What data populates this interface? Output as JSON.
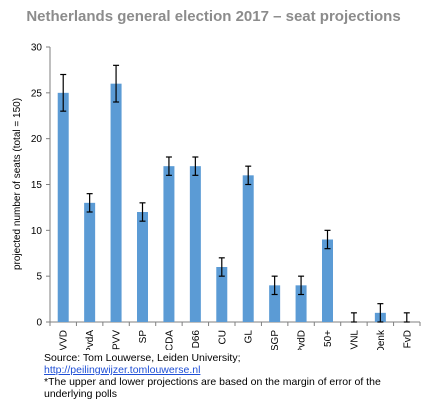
{
  "chart_data": {
    "type": "bar",
    "title": "Netherlands general election 2017 – seat projections",
    "ylabel": "projected number of seats (total = 150)",
    "xlabel": "",
    "ylim": [
      0,
      30
    ],
    "yticks": [
      0,
      5,
      10,
      15,
      20,
      25,
      30
    ],
    "grid": false,
    "categories": [
      "VVD",
      "PvdA",
      "PVV",
      "SP",
      "CDA",
      "D66",
      "CU",
      "GL",
      "SGP",
      "PvdD",
      "50+",
      "VNL",
      "Denk",
      "FvD"
    ],
    "values": [
      25,
      13,
      26,
      12,
      17,
      17,
      6,
      16,
      4,
      4,
      9,
      0,
      1,
      0
    ],
    "error_low": [
      23,
      12,
      24,
      11,
      16,
      16,
      5,
      15,
      3,
      3,
      8,
      0,
      0,
      0
    ],
    "error_high": [
      27,
      14,
      28,
      13,
      18,
      18,
      7,
      17,
      5,
      5,
      10,
      1,
      2,
      1
    ],
    "bar_color": "#5b9bd5"
  },
  "footer": {
    "source": "Source: Tom Louwerse, Leiden University;",
    "link": "http://peilingwijzer.tomlouwerse.nl",
    "note": "*The upper and lower projections are based on the margin of error of the underlying polls"
  }
}
